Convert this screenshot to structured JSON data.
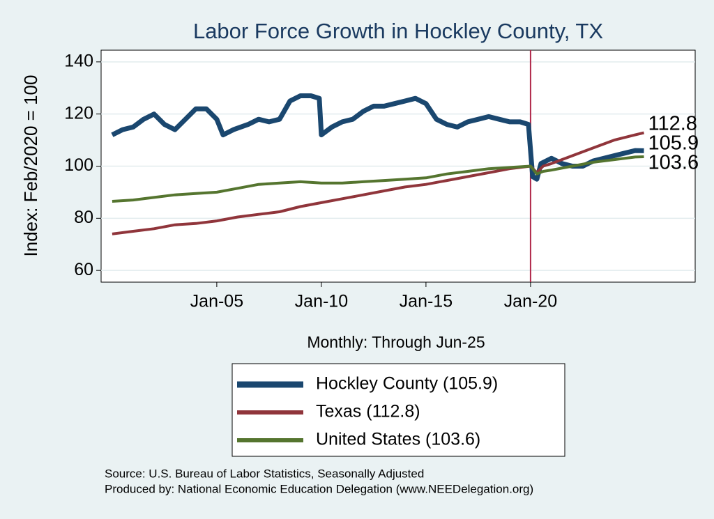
{
  "chart_data": {
    "type": "line",
    "title": "Labor Force Growth in Hockley  County, TX",
    "x_label": "Monthly: Through Jun-25",
    "y_label": "Index: Feb/2020 = 100",
    "source": "Source: U.S. Bureau of Labor Statistics, Seasonally Adjusted",
    "producer": "Produced by: National Economic Education Delegation (www.NEEDelegation.org)",
    "xlim": [
      1999.47,
      2027.87
    ],
    "ylim": [
      55.5,
      144.5
    ],
    "xticks": [
      {
        "value": 2005,
        "label": "Jan-05"
      },
      {
        "value": 2010,
        "label": "Jan-10"
      },
      {
        "value": 2015,
        "label": "Jan-15"
      },
      {
        "value": 2020,
        "label": "Jan-20"
      }
    ],
    "yticks": [
      60,
      80,
      100,
      120,
      140
    ],
    "grid": true,
    "vline": 2020,
    "vline_color": "#b0284a",
    "series": [
      {
        "name": "Hockley  County (105.9)",
        "color": "#1a476f",
        "end_label": "105.9",
        "x": [
          2000,
          2000.5,
          2001,
          2001.5,
          2002,
          2002.5,
          2003,
          2003.5,
          2004,
          2004.5,
          2005,
          2005.3,
          2005.8,
          2006.5,
          2007,
          2007.5,
          2008,
          2008.5,
          2009,
          2009.5,
          2009.9,
          2010,
          2010.5,
          2011,
          2011.5,
          2012,
          2012.5,
          2013,
          2013.5,
          2014,
          2014.5,
          2015,
          2015.5,
          2016,
          2016.5,
          2017,
          2017.5,
          2018,
          2018.5,
          2019,
          2019.5,
          2019.9,
          2020.1,
          2020.3,
          2020.5,
          2021,
          2021.5,
          2022,
          2022.5,
          2023,
          2023.5,
          2024,
          2024.5,
          2025,
          2025.42
        ],
        "values": [
          112,
          114,
          115,
          118,
          120,
          116,
          114,
          118,
          122,
          122,
          118,
          112,
          114,
          116,
          118,
          117,
          118,
          125,
          127,
          127,
          126,
          112,
          115,
          117,
          118,
          121,
          123,
          123,
          124,
          125,
          126,
          124,
          118,
          116,
          115,
          117,
          118,
          119,
          118,
          117,
          117,
          116,
          96,
          95,
          101,
          103,
          101,
          100,
          100,
          102,
          103,
          104,
          105,
          106,
          105.9
        ]
      },
      {
        "name": "Texas (112.8)",
        "color": "#90353b",
        "end_label": "112.8",
        "x": [
          2000,
          2001,
          2002,
          2003,
          2004,
          2005,
          2006,
          2007,
          2008,
          2009,
          2010,
          2011,
          2012,
          2013,
          2014,
          2015,
          2016,
          2017,
          2018,
          2019,
          2020,
          2020.3,
          2020.6,
          2021,
          2022,
          2023,
          2024,
          2025,
          2025.42
        ],
        "values": [
          74,
          75,
          76,
          77.5,
          78,
          79,
          80.5,
          81.5,
          82.5,
          84.5,
          86,
          87.5,
          89,
          90.5,
          92,
          93,
          94.5,
          96,
          97.5,
          99,
          100,
          97.5,
          100,
          101,
          104,
          107,
          110,
          112,
          112.8
        ]
      },
      {
        "name": "United States (103.6)",
        "color": "#55752f",
        "end_label": "103.6",
        "x": [
          2000,
          2001,
          2002,
          2003,
          2004,
          2005,
          2006,
          2007,
          2008,
          2009,
          2010,
          2011,
          2012,
          2013,
          2014,
          2015,
          2016,
          2017,
          2018,
          2019,
          2020,
          2020.3,
          2020.6,
          2021,
          2022,
          2023,
          2024,
          2025,
          2025.42
        ],
        "values": [
          86.5,
          87,
          88,
          89,
          89.5,
          90,
          91.5,
          93,
          93.5,
          94,
          93.5,
          93.5,
          94,
          94.5,
          95,
          95.5,
          97,
          98,
          99,
          99.5,
          100,
          97,
          98,
          98.5,
          100,
          101.5,
          102.5,
          103.5,
          103.6
        ]
      }
    ]
  }
}
